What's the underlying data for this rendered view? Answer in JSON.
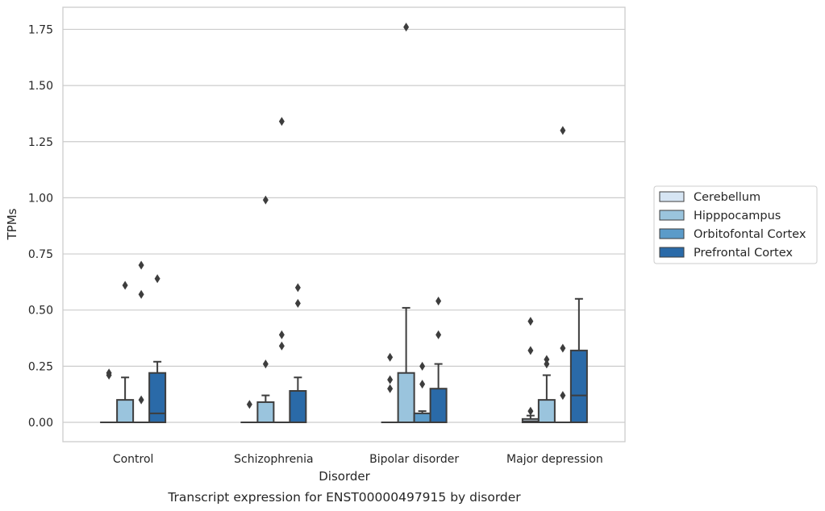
{
  "chart_data": {
    "type": "box",
    "title": "",
    "caption": "Transcript expression for ENST00000497915 by disorder",
    "xlabel": "Disorder",
    "ylabel": "TPMs",
    "ylim": [
      -0.085,
      1.85
    ],
    "yticks": [
      0.0,
      0.25,
      0.5,
      0.75,
      1.0,
      1.25,
      1.5,
      1.75
    ],
    "ytick_labels": [
      "0.00",
      "0.25",
      "0.50",
      "0.75",
      "1.00",
      "1.25",
      "1.50",
      "1.75"
    ],
    "grid": "horizontal",
    "legend_placement": "right",
    "categories": [
      "Control",
      "Schizophrenia",
      "Bipolar disorder",
      "Major depression"
    ],
    "series": [
      {
        "name": "Cerebellum",
        "color": "#d6e5f3",
        "boxes": [
          {
            "q1": 0,
            "median": 0,
            "q3": 0,
            "whisker_low": 0,
            "whisker_high": 0,
            "outliers": [
              0.22,
              0.21
            ]
          },
          {
            "q1": 0,
            "median": 0,
            "q3": 0,
            "whisker_low": 0,
            "whisker_high": 0,
            "outliers": [
              0.08
            ]
          },
          {
            "q1": 0,
            "median": 0,
            "q3": 0,
            "whisker_low": 0,
            "whisker_high": 0,
            "outliers": [
              0.29,
              0.19,
              0.15
            ]
          },
          {
            "q1": 0,
            "median": 0.005,
            "q3": 0.015,
            "whisker_low": 0,
            "whisker_high": 0.03,
            "outliers": [
              0.45,
              0.32,
              0.05
            ]
          }
        ]
      },
      {
        "name": "Hipppocampus",
        "color": "#9ac4dd",
        "boxes": [
          {
            "q1": 0,
            "median": 0,
            "q3": 0.1,
            "whisker_low": 0,
            "whisker_high": 0.2,
            "outliers": [
              0.61
            ]
          },
          {
            "q1": 0,
            "median": 0,
            "q3": 0.09,
            "whisker_low": 0,
            "whisker_high": 0.12,
            "outliers": [
              0.99,
              0.26
            ]
          },
          {
            "q1": 0,
            "median": 0,
            "q3": 0.22,
            "whisker_low": 0,
            "whisker_high": 0.51,
            "outliers": [
              1.76
            ]
          },
          {
            "q1": 0,
            "median": 0,
            "q3": 0.1,
            "whisker_low": 0,
            "whisker_high": 0.21,
            "outliers": [
              0.28,
              0.26
            ]
          }
        ]
      },
      {
        "name": "Orbitofontal Cortex",
        "color": "#5b9bc9",
        "boxes": [
          {
            "q1": 0,
            "median": 0,
            "q3": 0,
            "whisker_low": 0,
            "whisker_high": 0,
            "outliers": [
              0.7,
              0.57,
              0.1
            ]
          },
          {
            "q1": 0,
            "median": 0,
            "q3": 0,
            "whisker_low": 0,
            "whisker_high": 0,
            "outliers": [
              1.34,
              0.39,
              0.34
            ]
          },
          {
            "q1": 0,
            "median": 0,
            "q3": 0.04,
            "whisker_low": 0,
            "whisker_high": 0.05,
            "outliers": [
              0.25,
              0.17
            ]
          },
          {
            "q1": 0,
            "median": 0,
            "q3": 0,
            "whisker_low": 0,
            "whisker_high": 0,
            "outliers": [
              1.3,
              0.33,
              0.12
            ]
          }
        ]
      },
      {
        "name": "Prefrontal Cortex",
        "color": "#2a6aa8",
        "boxes": [
          {
            "q1": 0,
            "median": 0.04,
            "q3": 0.22,
            "whisker_low": 0,
            "whisker_high": 0.27,
            "outliers": [
              0.64
            ]
          },
          {
            "q1": 0,
            "median": 0,
            "q3": 0.14,
            "whisker_low": 0,
            "whisker_high": 0.2,
            "outliers": [
              0.6,
              0.53
            ]
          },
          {
            "q1": 0,
            "median": 0,
            "q3": 0.15,
            "whisker_low": 0,
            "whisker_high": 0.26,
            "outliers": [
              0.54,
              0.39
            ]
          },
          {
            "q1": 0,
            "median": 0.12,
            "q3": 0.32,
            "whisker_low": 0,
            "whisker_high": 0.55,
            "outliers": []
          }
        ]
      }
    ]
  }
}
